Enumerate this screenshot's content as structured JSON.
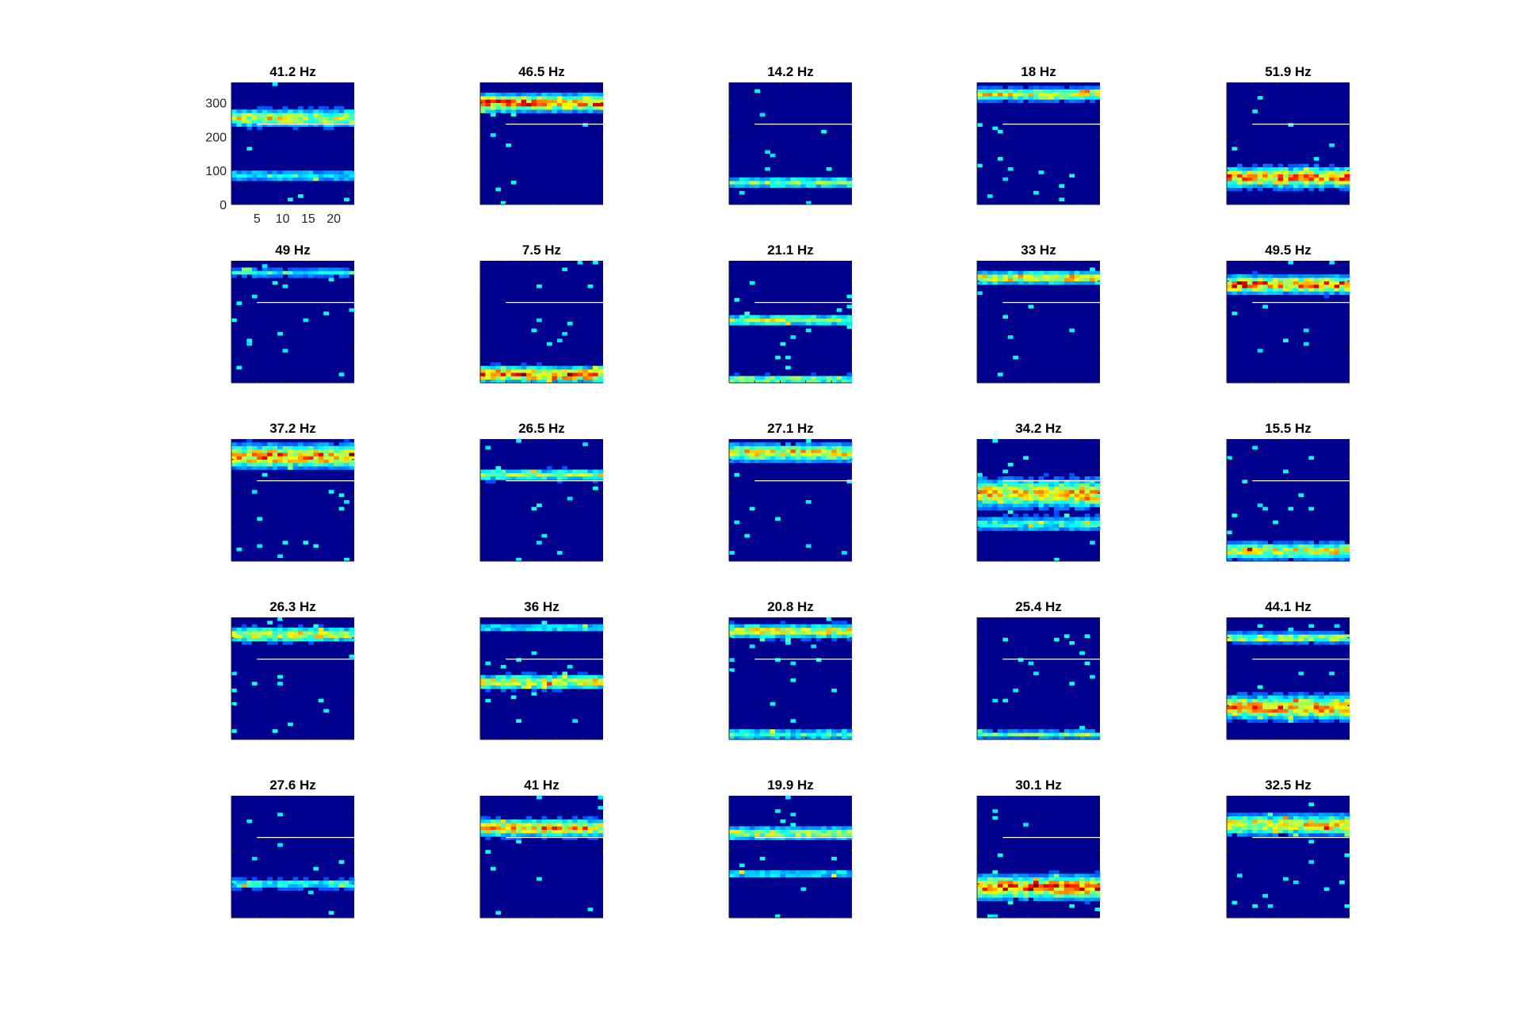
{
  "figure": {
    "background": "#ffffff",
    "heatmap_background": "#00008f",
    "threshold_line_color": "#ffffff",
    "colormap": "jet",
    "rows": 5,
    "cols": 5
  },
  "chart_data": {
    "type": "heatmap",
    "layout": "5x5 grid of small heatmaps",
    "shared_axes": {
      "x_range": [
        0,
        24
      ],
      "y_range": [
        0,
        360
      ],
      "x_ticks": [
        5,
        10,
        15,
        20
      ],
      "y_ticks": [
        0,
        100,
        200,
        300
      ],
      "tick_labels_shown_on": "top-left panel only",
      "threshold_line_y": 237,
      "threshold_line_x_start": 5
    },
    "panels": [
      {
        "title": "41.2 Hz",
        "bands": [
          {
            "y": 255,
            "h": 30,
            "level": 0.55
          },
          {
            "y": 85,
            "h": 20,
            "level": 0.3
          }
        ]
      },
      {
        "title": "46.5 Hz",
        "bands": [
          {
            "y": 300,
            "h": 30,
            "level": 0.75
          }
        ]
      },
      {
        "title": "14.2 Hz",
        "bands": [
          {
            "y": 65,
            "h": 18,
            "level": 0.45
          }
        ]
      },
      {
        "title": "18 Hz",
        "bands": [
          {
            "y": 325,
            "h": 22,
            "level": 0.55
          }
        ]
      },
      {
        "title": "51.9 Hz",
        "bands": [
          {
            "y": 80,
            "h": 35,
            "level": 0.7
          }
        ]
      },
      {
        "title": "49 Hz",
        "bands": [
          {
            "y": 325,
            "h": 15,
            "level": 0.3
          }
        ]
      },
      {
        "title": "7.5 Hz",
        "bands": [
          {
            "y": 25,
            "h": 28,
            "level": 0.7
          }
        ]
      },
      {
        "title": "21.1 Hz",
        "bands": [
          {
            "y": 185,
            "h": 18,
            "level": 0.5
          },
          {
            "y": 10,
            "h": 15,
            "level": 0.45
          }
        ]
      },
      {
        "title": "33 Hz",
        "bands": [
          {
            "y": 310,
            "h": 22,
            "level": 0.6
          }
        ]
      },
      {
        "title": "49.5 Hz",
        "bands": [
          {
            "y": 290,
            "h": 30,
            "level": 0.75
          }
        ]
      },
      {
        "title": "37.2 Hz",
        "bands": [
          {
            "y": 310,
            "h": 40,
            "level": 0.7
          }
        ]
      },
      {
        "title": "26.5 Hz",
        "bands": [
          {
            "y": 255,
            "h": 20,
            "level": 0.45
          }
        ]
      },
      {
        "title": "27.1 Hz",
        "bands": [
          {
            "y": 320,
            "h": 30,
            "level": 0.6
          }
        ]
      },
      {
        "title": "34.2 Hz",
        "bands": [
          {
            "y": 200,
            "h": 50,
            "level": 0.6
          },
          {
            "y": 110,
            "h": 25,
            "level": 0.35
          }
        ]
      },
      {
        "title": "15.5 Hz",
        "bands": [
          {
            "y": 30,
            "h": 30,
            "level": 0.55
          }
        ]
      },
      {
        "title": "26.3 Hz",
        "bands": [
          {
            "y": 310,
            "h": 25,
            "level": 0.55
          }
        ]
      },
      {
        "title": "36 Hz",
        "bands": [
          {
            "y": 170,
            "h": 25,
            "level": 0.55
          },
          {
            "y": 330,
            "h": 15,
            "level": 0.3
          }
        ]
      },
      {
        "title": "20.8 Hz",
        "bands": [
          {
            "y": 320,
            "h": 25,
            "level": 0.55
          },
          {
            "y": 15,
            "h": 20,
            "level": 0.35
          }
        ]
      },
      {
        "title": "25.4 Hz",
        "bands": [
          {
            "y": 15,
            "h": 14,
            "level": 0.4
          }
        ]
      },
      {
        "title": "44.1 Hz",
        "bands": [
          {
            "y": 300,
            "h": 18,
            "level": 0.5
          },
          {
            "y": 95,
            "h": 40,
            "level": 0.7
          }
        ]
      },
      {
        "title": "27.6 Hz",
        "bands": [
          {
            "y": 100,
            "h": 18,
            "level": 0.35
          }
        ]
      },
      {
        "title": "41 Hz",
        "bands": [
          {
            "y": 265,
            "h": 30,
            "level": 0.65
          }
        ]
      },
      {
        "title": "19.9 Hz",
        "bands": [
          {
            "y": 250,
            "h": 22,
            "level": 0.5
          },
          {
            "y": 130,
            "h": 15,
            "level": 0.3
          }
        ]
      },
      {
        "title": "30.1 Hz",
        "bands": [
          {
            "y": 90,
            "h": 40,
            "level": 0.75
          }
        ]
      },
      {
        "title": "32.5 Hz",
        "bands": [
          {
            "y": 275,
            "h": 35,
            "level": 0.6
          }
        ]
      }
    ]
  }
}
